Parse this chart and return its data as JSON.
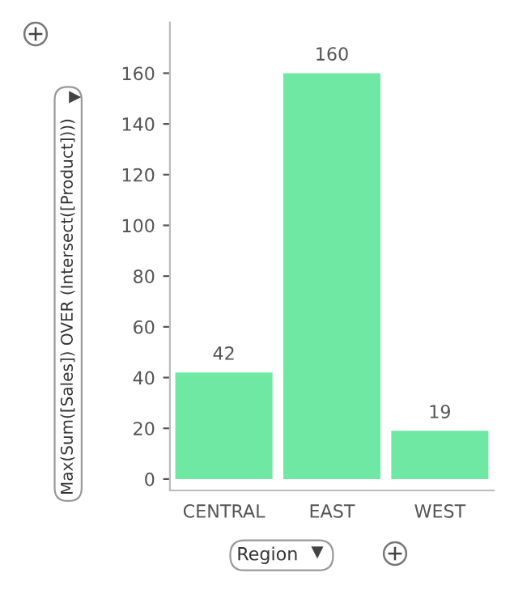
{
  "chart_data": {
    "type": "bar",
    "xlabel": "Region",
    "ylabel": "Max(Sum([Sales]) OVER (Intersect([Product])))",
    "categories": [
      "CENTRAL",
      "EAST",
      "WEST"
    ],
    "values": [
      42,
      160,
      19
    ],
    "color": "#6ee8a2",
    "ylim": [
      -4.5,
      180
    ],
    "yticks": [
      0,
      20,
      40,
      60,
      80,
      100,
      120,
      140,
      160
    ],
    "data_labels": true,
    "grid": false,
    "legend": false
  }
}
